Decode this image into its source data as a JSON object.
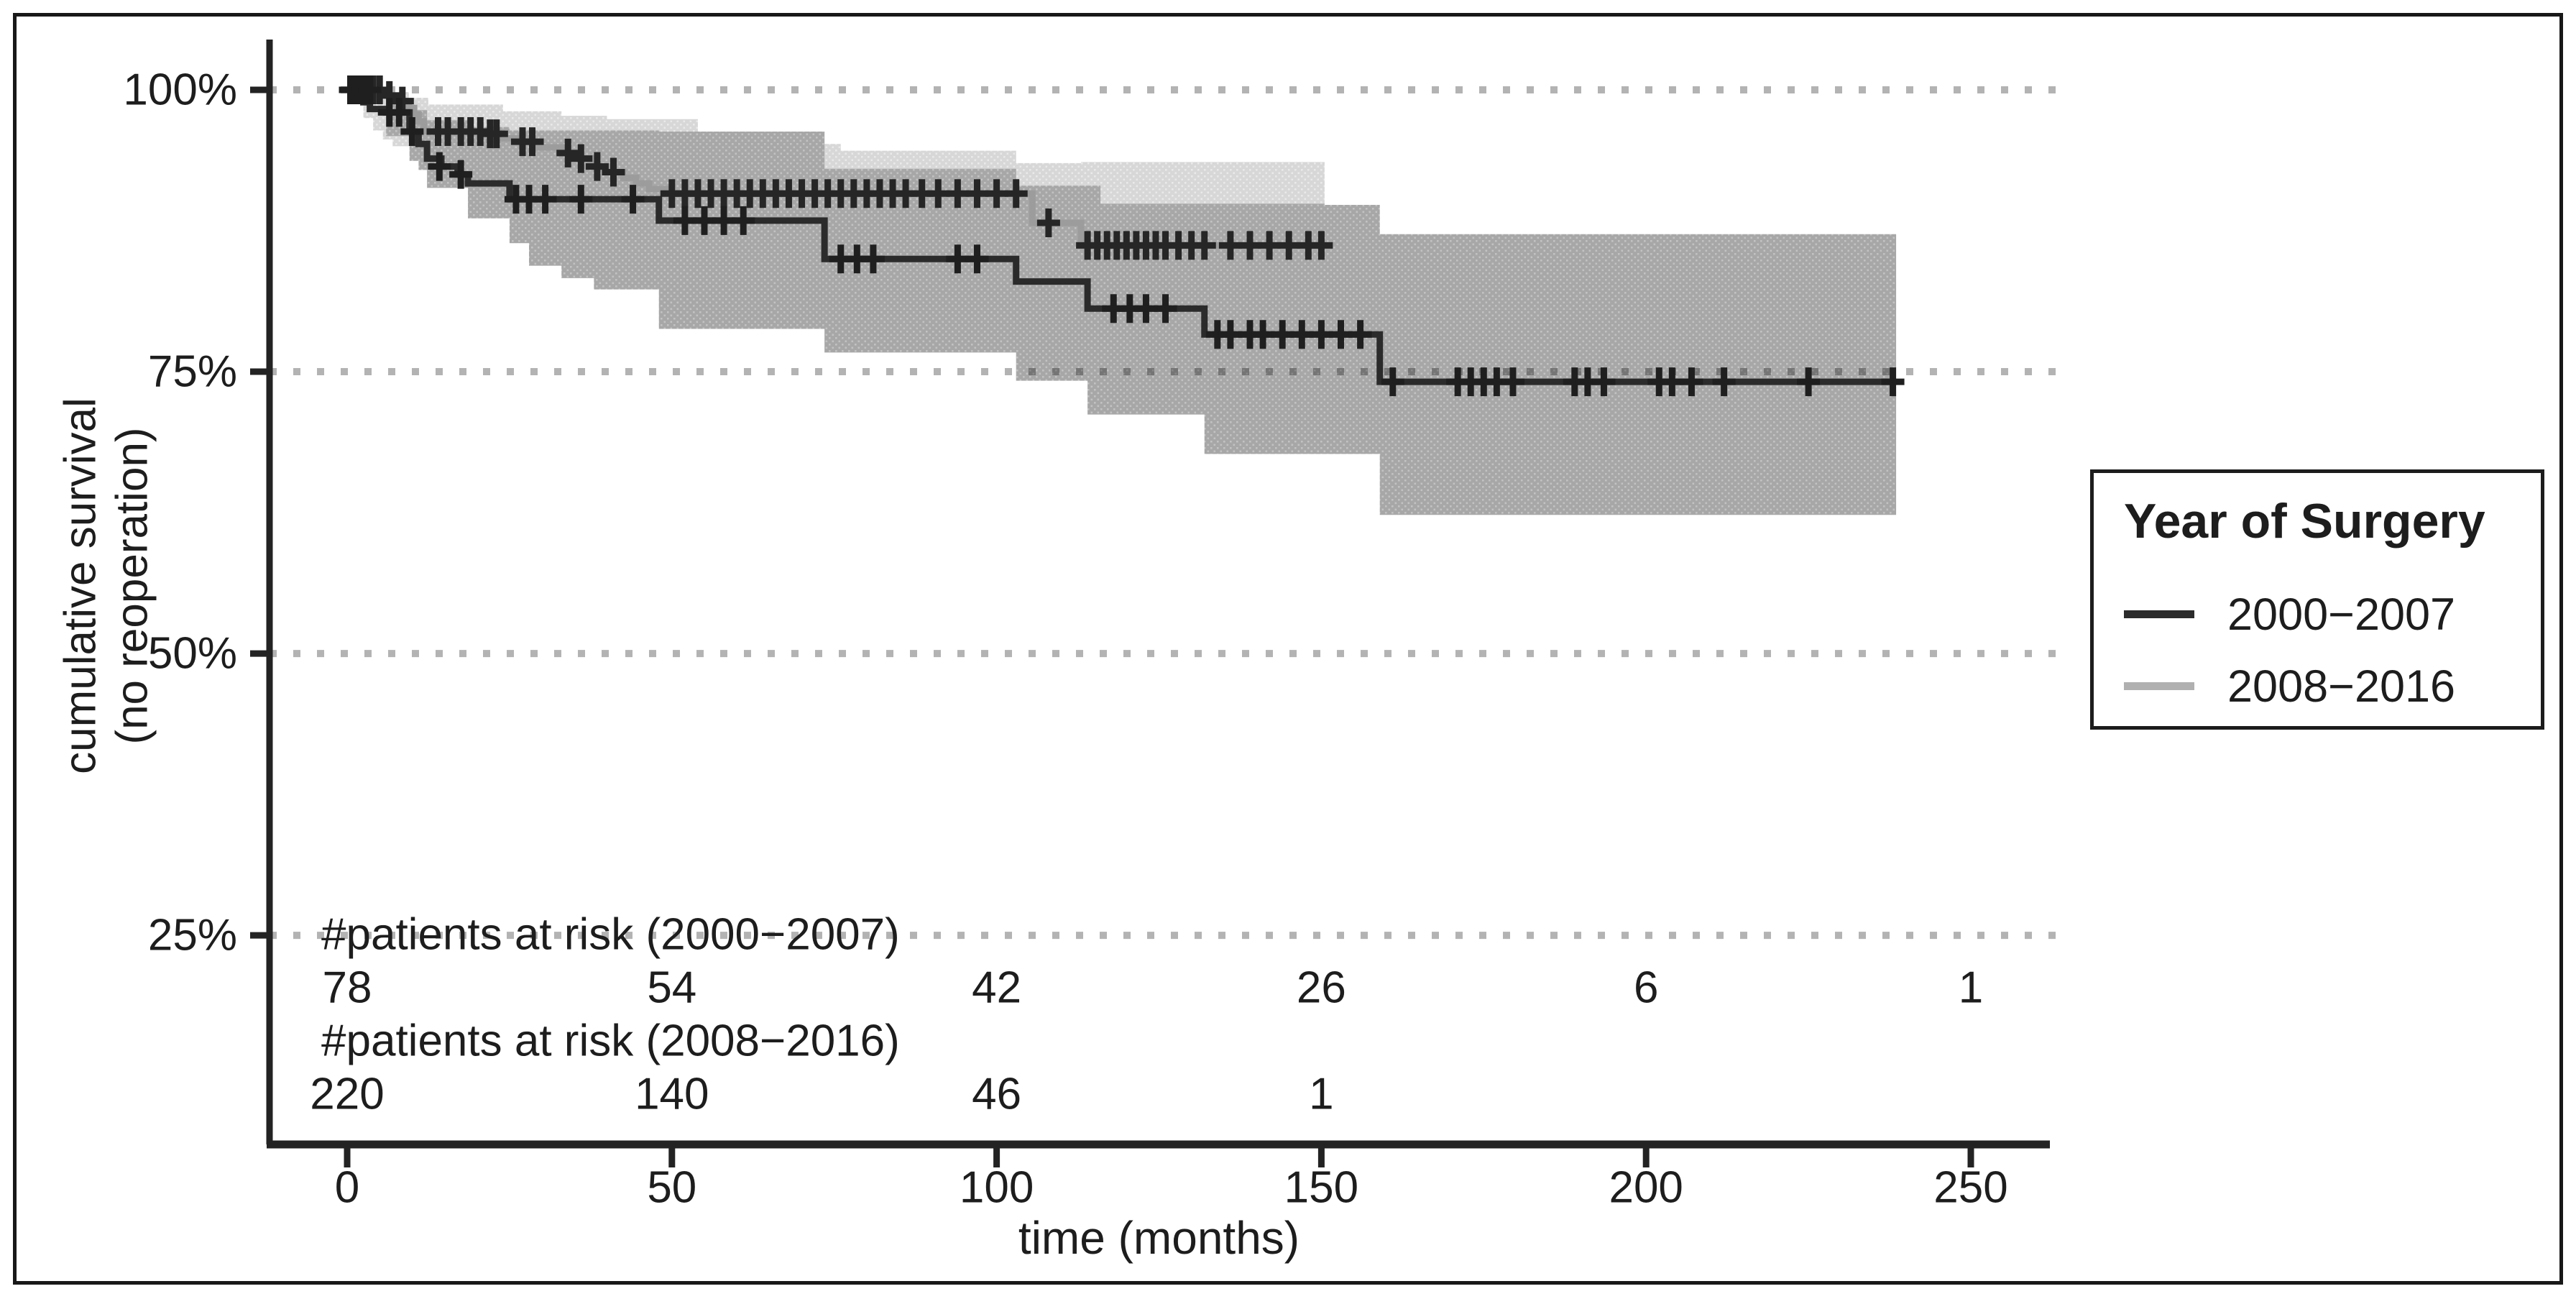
{
  "legend": {
    "title": "Year of Surgery",
    "items": [
      {
        "label": "2000−2007",
        "color": "#2b2b2b"
      },
      {
        "label": "2008−2016",
        "color": "#b0b0b0"
      }
    ]
  },
  "axes": {
    "x": {
      "title": "time (months)",
      "ticks": [
        0,
        50,
        100,
        150,
        200,
        250
      ],
      "range": [
        0,
        250
      ]
    },
    "y": {
      "title_line1": "cumulative survival",
      "title_line2": "(no reoperation)",
      "tick_labels": [
        "100%",
        "75%",
        "50%",
        "25%"
      ],
      "tick_values": [
        100,
        75,
        50,
        25
      ]
    }
  },
  "risk_table": {
    "rows": [
      {
        "label": "#patients at risk (2000−2007)",
        "times": [
          0,
          50,
          100,
          150,
          200,
          250
        ],
        "values": [
          "78",
          "54",
          "42",
          "26",
          "6",
          "1"
        ]
      },
      {
        "label": "#patients at risk (2008−2016)",
        "times": [
          0,
          50,
          100,
          150
        ],
        "values": [
          "220",
          "140",
          "46",
          "1"
        ]
      }
    ]
  },
  "chart_data": {
    "type": "line",
    "subtype": "kaplan-meier-step",
    "xlabel": "time (months)",
    "ylabel": "cumulative survival (no reoperation)",
    "xlim": [
      -12,
      265
    ],
    "ylim_percent": [
      6,
      105
    ],
    "grid": "dotted horizontal at 25/50/75/100%",
    "legend_position": "right",
    "bands": [
      {
        "name": "ci-2008-2016",
        "base_color": "#d7d7d7",
        "dot_color": "#e9e9e9",
        "upper": [
          [
            0,
            100
          ],
          [
            2.5,
            100
          ],
          [
            6,
            99.8
          ],
          [
            9.5,
            99.3
          ],
          [
            12.5,
            98.7
          ],
          [
            24,
            98.1
          ],
          [
            33,
            97.7
          ],
          [
            40,
            97.4
          ],
          [
            54,
            96.3
          ],
          [
            73.5,
            95.2
          ],
          [
            76,
            94.6
          ],
          [
            103,
            93.5
          ],
          [
            113,
            93.6
          ],
          [
            150.5,
            93.6
          ]
        ],
        "lower": [
          [
            0,
            100
          ],
          [
            2.5,
            97.5
          ],
          [
            4,
            96.4
          ],
          [
            5.5,
            95.6
          ],
          [
            7,
            95.0
          ],
          [
            9.6,
            94.2
          ],
          [
            12.3,
            93.3
          ],
          [
            18.6,
            92.6
          ],
          [
            25,
            92.0
          ],
          [
            33,
            91.4
          ],
          [
            40,
            90.9
          ],
          [
            49,
            88.0
          ],
          [
            105.5,
            84.5
          ],
          [
            113,
            80.5
          ],
          [
            150.5,
            80.5
          ]
        ]
      },
      {
        "name": "ci-2000-2007",
        "base_color": "#a7a7a7",
        "dot_color": "#c2c2c2",
        "upper": [
          [
            6,
            99.0
          ],
          [
            9.6,
            98.2
          ],
          [
            12.3,
            97.3
          ],
          [
            18.6,
            96.7
          ],
          [
            25,
            96.4
          ],
          [
            48,
            96.3
          ],
          [
            73.5,
            93.0
          ],
          [
            103,
            91.5
          ],
          [
            116,
            89.9
          ],
          [
            150.5,
            89.8
          ],
          [
            159,
            87.2
          ],
          [
            238.5,
            87.2
          ]
        ],
        "lower": [
          [
            6,
            95.9
          ],
          [
            9.6,
            93.7
          ],
          [
            11,
            92.9
          ],
          [
            12.3,
            91.3
          ],
          [
            18.6,
            88.6
          ],
          [
            25,
            86.4
          ],
          [
            28,
            84.4
          ],
          [
            33,
            83.3
          ],
          [
            38,
            82.3
          ],
          [
            48,
            78.8
          ],
          [
            73.5,
            76.7
          ],
          [
            103,
            74.2
          ],
          [
            114,
            71.2
          ],
          [
            132,
            67.7
          ],
          [
            159,
            62.3
          ],
          [
            238.5,
            62.3
          ]
        ]
      }
    ],
    "series": [
      {
        "name": "2008-2016",
        "color": "#9c9c9c",
        "censor_color": "#262626",
        "end_month": 150.5,
        "steps": [
          [
            0,
            100
          ],
          [
            5.5,
            99.5
          ],
          [
            8,
            99.0
          ],
          [
            9.5,
            98.4
          ],
          [
            10.3,
            97.8
          ],
          [
            11,
            97.2
          ],
          [
            11.8,
            96.3
          ],
          [
            21,
            96.1
          ],
          [
            24,
            95.7
          ],
          [
            26,
            95.4
          ],
          [
            29.5,
            94.9
          ],
          [
            33,
            94.4
          ],
          [
            35.5,
            93.9
          ],
          [
            37.5,
            93.2
          ],
          [
            40,
            92.7
          ],
          [
            42.5,
            92.2
          ],
          [
            44.5,
            91.7
          ],
          [
            46.5,
            91.2
          ],
          [
            49,
            90.8
          ],
          [
            105.5,
            88.2
          ],
          [
            113,
            86.2
          ]
        ],
        "censors": [
          [
            1,
            100
          ],
          [
            2,
            100
          ],
          [
            3,
            100
          ],
          [
            4,
            100
          ],
          [
            5,
            100
          ],
          [
            6.5,
            99.5
          ],
          [
            8.5,
            99.0
          ],
          [
            14,
            96.3
          ],
          [
            15.5,
            96.3
          ],
          [
            17.5,
            96.3
          ],
          [
            19,
            96.3
          ],
          [
            20.5,
            96.3
          ],
          [
            22,
            96.1
          ],
          [
            23,
            96.1
          ],
          [
            27,
            95.4
          ],
          [
            28.5,
            95.4
          ],
          [
            34,
            94.4
          ],
          [
            36,
            93.9
          ],
          [
            38.5,
            93.2
          ],
          [
            41,
            92.7
          ],
          [
            50,
            90.8
          ],
          [
            52,
            90.8
          ],
          [
            54,
            90.8
          ],
          [
            56,
            90.8
          ],
          [
            58,
            90.8
          ],
          [
            60,
            90.8
          ],
          [
            62,
            90.8
          ],
          [
            64,
            90.8
          ],
          [
            66,
            90.8
          ],
          [
            68,
            90.8
          ],
          [
            70,
            90.8
          ],
          [
            72,
            90.8
          ],
          [
            74,
            90.8
          ],
          [
            76,
            90.8
          ],
          [
            78,
            90.8
          ],
          [
            80,
            90.8
          ],
          [
            82,
            90.8
          ],
          [
            84,
            90.8
          ],
          [
            86,
            90.8
          ],
          [
            88.5,
            90.8
          ],
          [
            91,
            90.8
          ],
          [
            94,
            90.8
          ],
          [
            97,
            90.8
          ],
          [
            100,
            90.8
          ],
          [
            103,
            90.8
          ],
          [
            108,
            88.2
          ],
          [
            114,
            86.2
          ],
          [
            115.5,
            86.2
          ],
          [
            117,
            86.2
          ],
          [
            118.5,
            86.2
          ],
          [
            120,
            86.2
          ],
          [
            121.5,
            86.2
          ],
          [
            123,
            86.2
          ],
          [
            124.5,
            86.2
          ],
          [
            126,
            86.2
          ],
          [
            128,
            86.2
          ],
          [
            130,
            86.2
          ],
          [
            132,
            86.2
          ],
          [
            136,
            86.2
          ],
          [
            139,
            86.2
          ],
          [
            142,
            86.2
          ],
          [
            145,
            86.2
          ],
          [
            148,
            86.2
          ],
          [
            150,
            86.2
          ]
        ]
      },
      {
        "name": "2000-2007",
        "color": "#2b2b2b",
        "censor_color": "#1f1f1f",
        "end_month": 238.5,
        "steps": [
          [
            0,
            100
          ],
          [
            1.2,
            99.4
          ],
          [
            2.5,
            98.9
          ],
          [
            3.5,
            98.3
          ],
          [
            6,
            98.0
          ],
          [
            9.6,
            96.3
          ],
          [
            11,
            95.2
          ],
          [
            12.3,
            93.9
          ],
          [
            14.5,
            93.2
          ],
          [
            17,
            92.5
          ],
          [
            18.6,
            91.7
          ],
          [
            25,
            90.3
          ],
          [
            48,
            88.4
          ],
          [
            73.5,
            85.0
          ],
          [
            103,
            83.0
          ],
          [
            114,
            80.6
          ],
          [
            132,
            78.3
          ],
          [
            159,
            74.1
          ]
        ],
        "censors": [
          [
            0.5,
            100
          ],
          [
            1.5,
            100
          ],
          [
            2.5,
            100
          ],
          [
            3.5,
            100
          ],
          [
            6.5,
            98.0
          ],
          [
            8,
            98.0
          ],
          [
            10,
            96.3
          ],
          [
            14.2,
            93.2
          ],
          [
            17.5,
            92.5
          ],
          [
            26,
            90.3
          ],
          [
            28,
            90.3
          ],
          [
            30.5,
            90.3
          ],
          [
            36,
            90.3
          ],
          [
            44,
            90.3
          ],
          [
            52,
            88.4
          ],
          [
            55,
            88.4
          ],
          [
            58,
            88.4
          ],
          [
            61,
            88.4
          ],
          [
            76,
            85.0
          ],
          [
            78.5,
            85.0
          ],
          [
            81,
            85.0
          ],
          [
            94,
            85.0
          ],
          [
            97,
            85.0
          ],
          [
            118,
            80.6
          ],
          [
            120.5,
            80.6
          ],
          [
            123,
            80.6
          ],
          [
            126,
            80.6
          ],
          [
            134,
            78.3
          ],
          [
            136,
            78.3
          ],
          [
            139,
            78.3
          ],
          [
            141,
            78.3
          ],
          [
            144,
            78.3
          ],
          [
            147,
            78.3
          ],
          [
            150,
            78.3
          ],
          [
            153,
            78.3
          ],
          [
            156,
            78.3
          ],
          [
            161,
            74.1
          ],
          [
            171,
            74.1
          ],
          [
            173,
            74.1
          ],
          [
            175,
            74.1
          ],
          [
            177,
            74.1
          ],
          [
            179.5,
            74.1
          ],
          [
            189,
            74.1
          ],
          [
            191,
            74.1
          ],
          [
            193.5,
            74.1
          ],
          [
            202,
            74.1
          ],
          [
            204,
            74.1
          ],
          [
            207,
            74.1
          ],
          [
            212,
            74.1
          ],
          [
            225,
            74.1
          ],
          [
            238,
            74.1
          ]
        ]
      }
    ],
    "at_risk": {
      "2000-2007": {
        "times": [
          0,
          50,
          100,
          150,
          200,
          250
        ],
        "values": [
          78,
          54,
          42,
          26,
          6,
          1
        ]
      },
      "2008-2016": {
        "times": [
          0,
          50,
          100,
          150
        ],
        "values": [
          220,
          140,
          46,
          1
        ]
      }
    }
  }
}
